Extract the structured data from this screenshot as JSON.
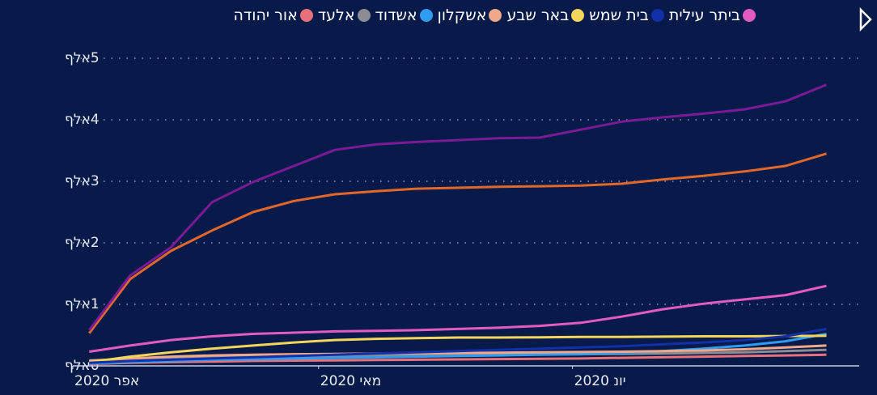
{
  "chart_data": {
    "type": "line",
    "x": [
      2,
      7,
      12,
      17,
      22,
      27,
      32,
      37,
      42,
      47,
      52,
      57,
      62,
      67,
      72,
      77,
      82,
      87,
      92
    ],
    "xlim": [
      -1,
      95
    ],
    "xticks": [
      {
        "value": 0,
        "label": "אפר 2020"
      },
      {
        "value": 30,
        "label": "מאי 2020"
      },
      {
        "value": 61,
        "label": "יונ 2020"
      }
    ],
    "ylim": [
      0,
      5000
    ],
    "yticks": [
      {
        "value": 0,
        "label": "0אלף"
      },
      {
        "value": 1000,
        "label": "1אלף"
      },
      {
        "value": 2000,
        "label": "2אלף"
      },
      {
        "value": 3000,
        "label": "3אלף"
      },
      {
        "value": 4000,
        "label": "4אלף"
      },
      {
        "value": 5000,
        "label": "5אלף"
      }
    ],
    "grid": true,
    "series": [
      {
        "name": "אור יהודה",
        "color": "#e8707a",
        "values": [
          30,
          50,
          60,
          70,
          80,
          85,
          90,
          95,
          100,
          105,
          110,
          115,
          120,
          130,
          140,
          150,
          160,
          170,
          180
        ]
      },
      {
        "name": "אלעד",
        "color": "#8c8c94",
        "values": [
          90,
          110,
          130,
          140,
          150,
          155,
          160,
          165,
          170,
          175,
          180,
          185,
          190,
          195,
          200,
          210,
          220,
          240,
          260
        ]
      },
      {
        "name": "אשדוד",
        "color": "#2f9cf0",
        "values": [
          40,
          60,
          80,
          100,
          110,
          120,
          130,
          140,
          150,
          160,
          170,
          180,
          190,
          210,
          240,
          280,
          330,
          400,
          520
        ]
      },
      {
        "name": "אשקלון",
        "color": "#f0a88a",
        "values": [
          80,
          120,
          150,
          170,
          180,
          190,
          195,
          200,
          205,
          210,
          215,
          220,
          225,
          230,
          240,
          250,
          270,
          300,
          330
        ]
      },
      {
        "name": "באר שבע",
        "color": "#f2d55a",
        "values": [
          60,
          150,
          220,
          280,
          330,
          380,
          420,
          440,
          450,
          460,
          460,
          465,
          470,
          470,
          475,
          480,
          480,
          485,
          490
        ]
      },
      {
        "name": "בית שמש",
        "color": "#1230a8",
        "values": [
          50,
          80,
          100,
          120,
          140,
          160,
          180,
          200,
          220,
          240,
          260,
          280,
          300,
          320,
          350,
          380,
          420,
          480,
          600
        ]
      },
      {
        "name": "ביתר עילית",
        "color": "#e25cc0",
        "values": [
          230,
          330,
          420,
          480,
          520,
          540,
          560,
          570,
          580,
          600,
          620,
          650,
          700,
          800,
          920,
          1010,
          1080,
          1150,
          1300
        ]
      },
      {
        "color": "#e0682a",
        "values": [
          530,
          1410,
          1870,
          2200,
          2500,
          2680,
          2790,
          2840,
          2880,
          2895,
          2910,
          2920,
          2930,
          2960,
          3030,
          3090,
          3160,
          3250,
          3450
        ]
      },
      {
        "color": "#7a1a96",
        "values": [
          580,
          1470,
          1930,
          2660,
          2990,
          3250,
          3510,
          3600,
          3640,
          3670,
          3700,
          3710,
          3840,
          3970,
          4040,
          4100,
          4170,
          4300,
          4570
        ]
      }
    ]
  }
}
